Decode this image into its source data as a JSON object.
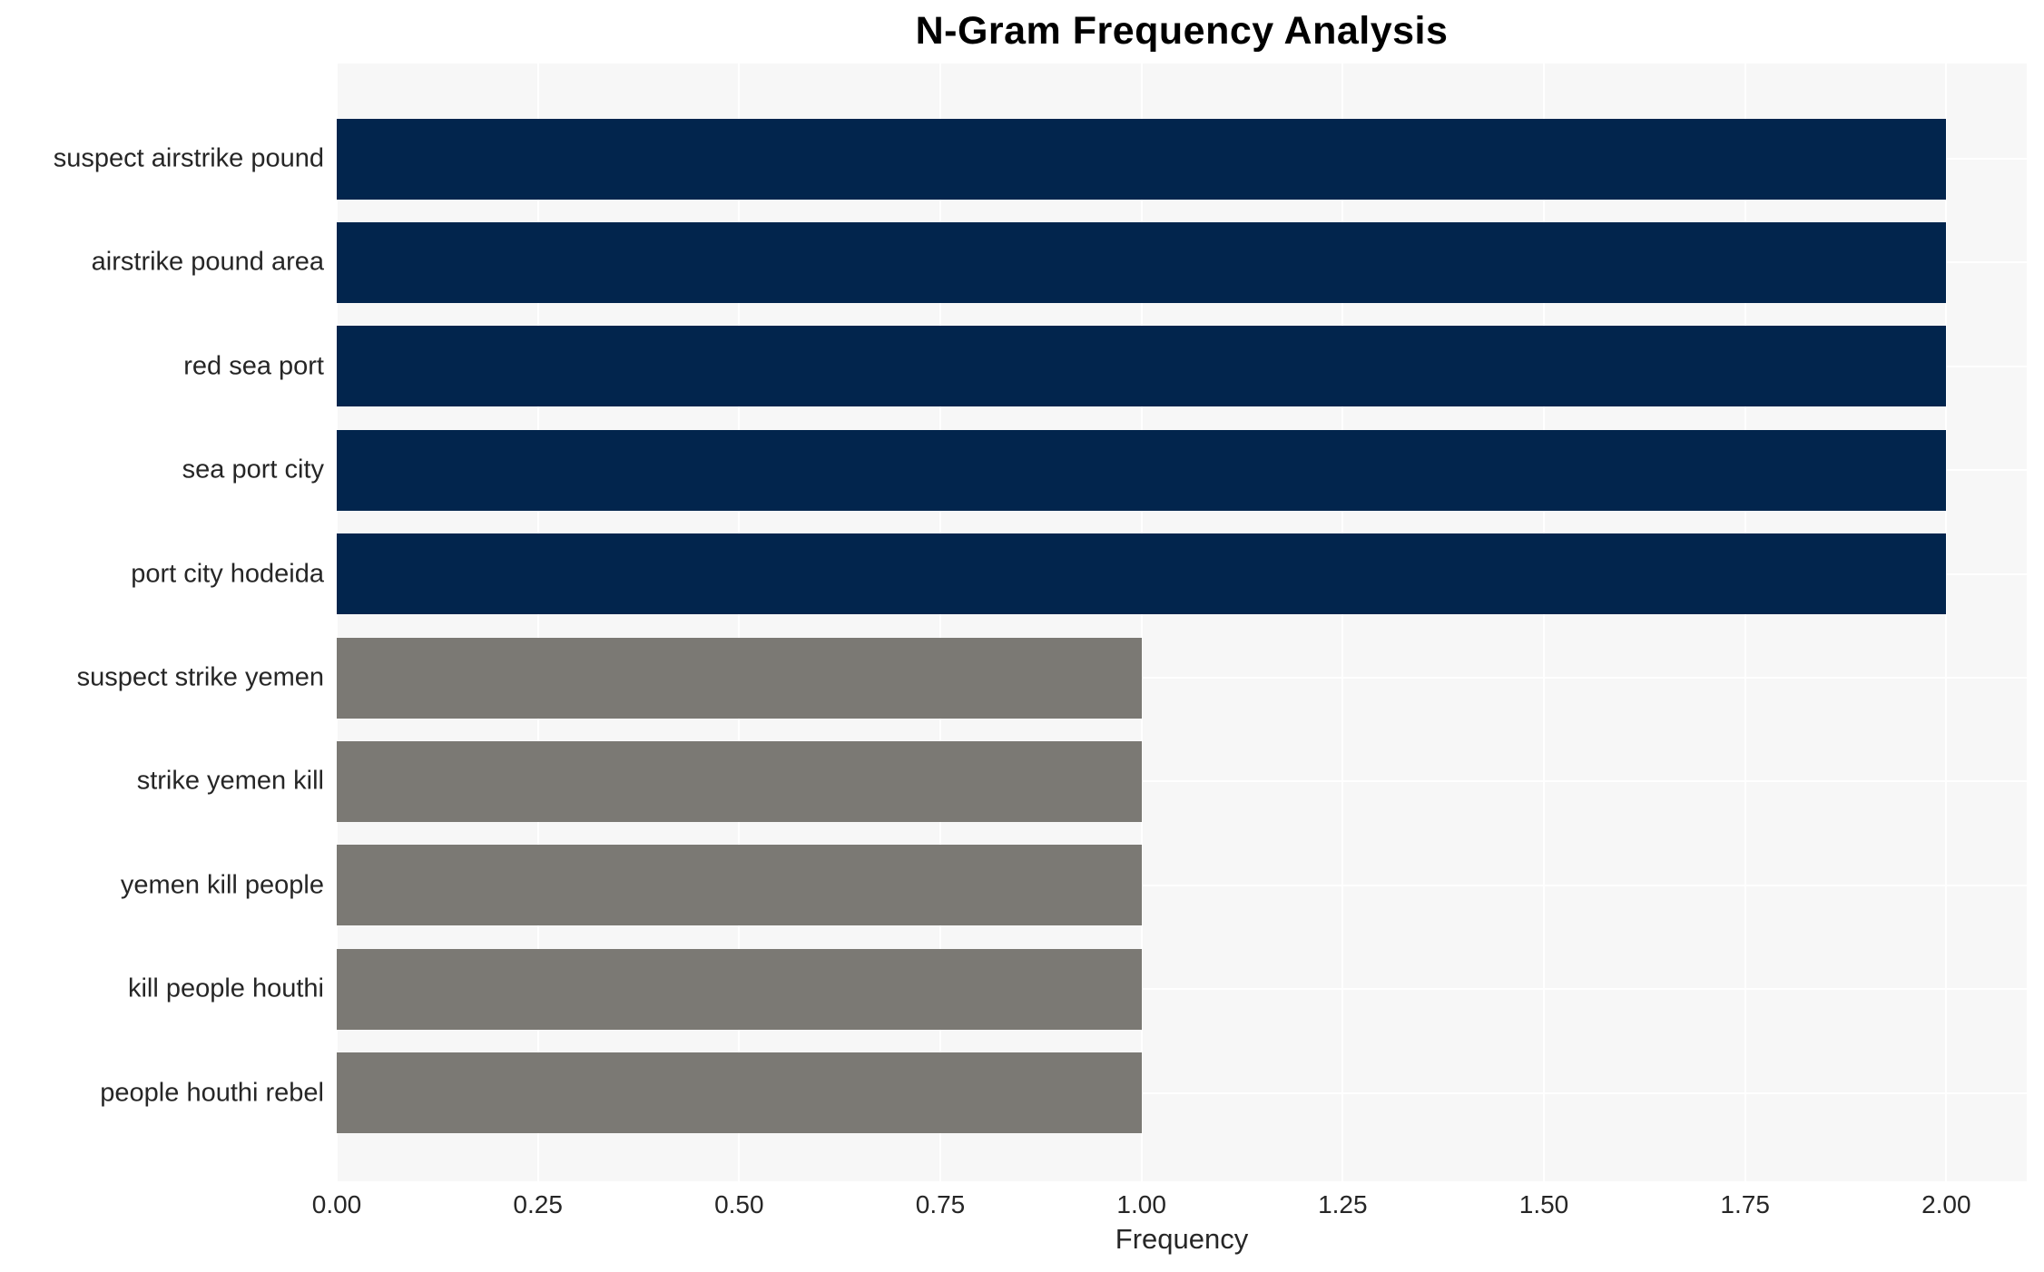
{
  "chart_data": {
    "type": "bar",
    "orientation": "horizontal",
    "title": "N-Gram Frequency Analysis",
    "xlabel": "Frequency",
    "ylabel": "",
    "categories": [
      "suspect airstrike pound",
      "airstrike pound area",
      "red sea port",
      "sea port city",
      "port city hodeida",
      "suspect strike yemen",
      "strike yemen kill",
      "yemen kill people",
      "kill people houthi",
      "people houthi rebel"
    ],
    "values": [
      2,
      2,
      2,
      2,
      2,
      1,
      1,
      1,
      1,
      1
    ],
    "bar_colors": [
      "#02254d",
      "#02254d",
      "#02254d",
      "#02254d",
      "#02254d",
      "#7b7974",
      "#7b7974",
      "#7b7974",
      "#7b7974",
      "#7b7974"
    ],
    "xlim": [
      0,
      2.1
    ],
    "xticks": [
      {
        "value": 0.0,
        "label": "0.00"
      },
      {
        "value": 0.25,
        "label": "0.25"
      },
      {
        "value": 0.5,
        "label": "0.50"
      },
      {
        "value": 0.75,
        "label": "0.75"
      },
      {
        "value": 1.0,
        "label": "1.00"
      },
      {
        "value": 1.25,
        "label": "1.25"
      },
      {
        "value": 1.5,
        "label": "1.50"
      },
      {
        "value": 1.75,
        "label": "1.75"
      },
      {
        "value": 2.0,
        "label": "2.00"
      }
    ],
    "grid": true,
    "legend": false,
    "colors": {
      "navy_bar": "#02254d",
      "gray_bar": "#7b7974",
      "plot_background": "#f7f7f7",
      "gridline": "#ffffff",
      "tick_text": "#262626",
      "title_text": "#000000",
      "page_background": "#ffffff"
    }
  }
}
